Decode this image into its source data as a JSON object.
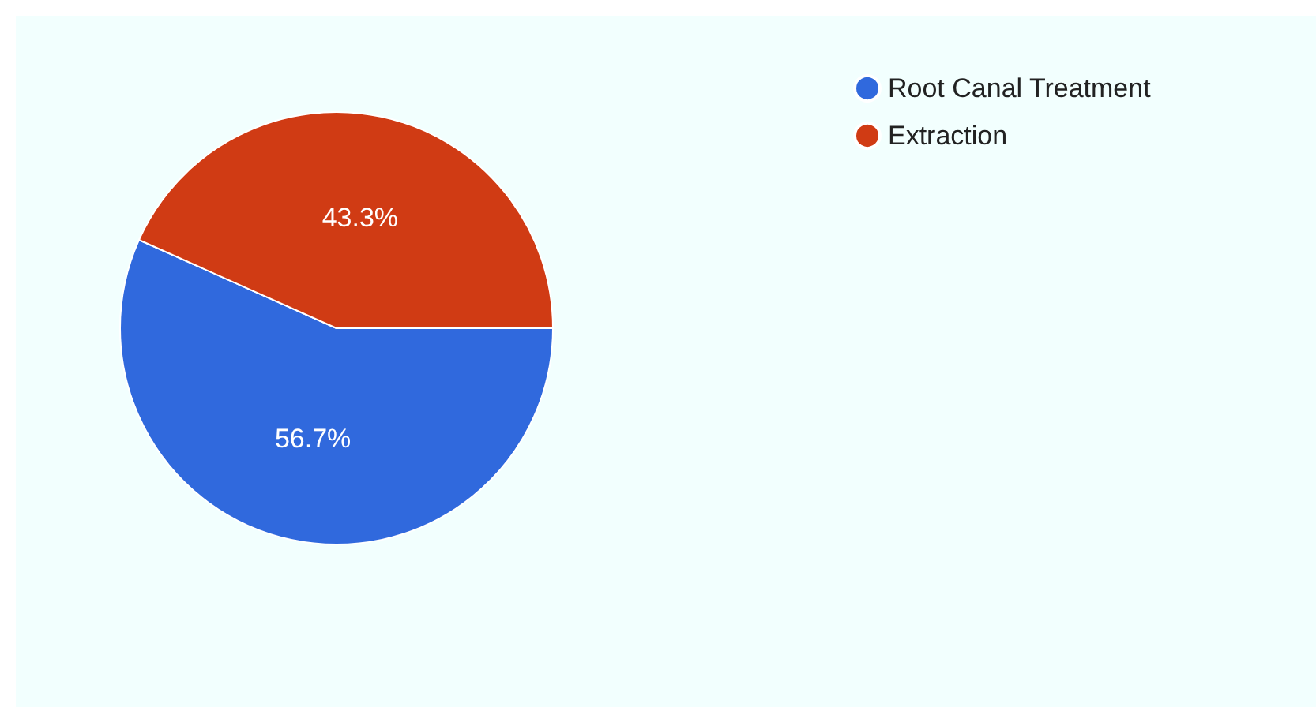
{
  "chart_data": {
    "type": "pie",
    "categories": [
      "Root Canal Treatment",
      "Extraction"
    ],
    "values": [
      56.7,
      43.3
    ],
    "colors": [
      "#3069dd",
      "#d03b14"
    ],
    "value_labels": [
      "56.7%",
      "43.3%"
    ],
    "legend": "top right"
  }
}
